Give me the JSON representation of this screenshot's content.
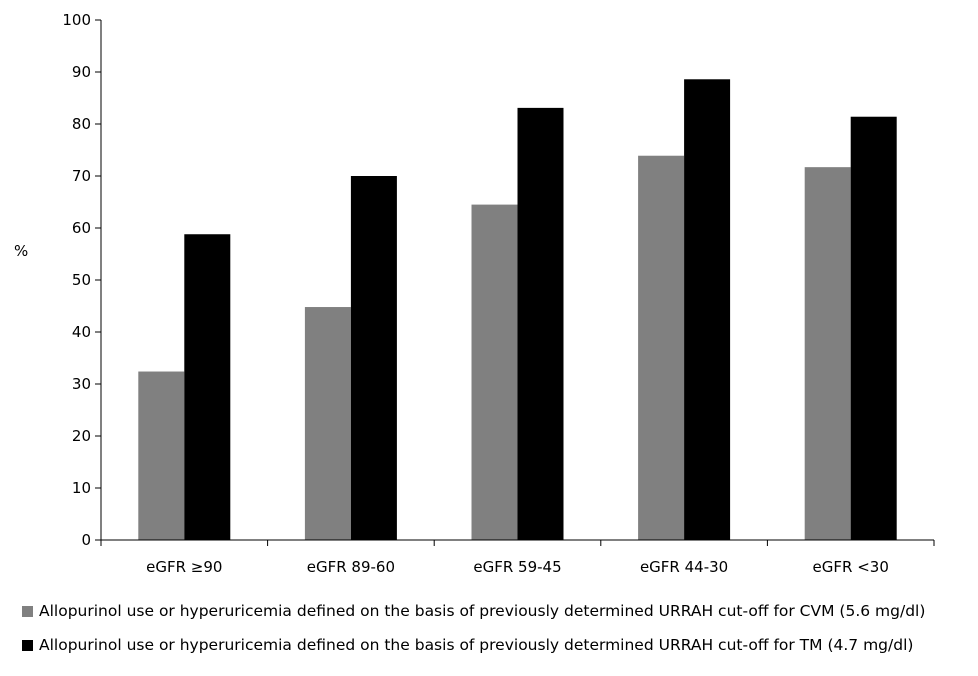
{
  "chart_data": {
    "type": "bar",
    "title": "",
    "xlabel": "",
    "ylabel": "%",
    "ylim": [
      0,
      100
    ],
    "yticks": [
      0,
      10,
      20,
      30,
      40,
      50,
      60,
      70,
      80,
      90,
      100
    ],
    "categories": [
      "eGFR ≥90",
      "eGFR 89-60",
      "eGFR 59-45",
      "eGFR 44-30",
      "eGFR <30"
    ],
    "series": [
      {
        "name": "Allopurinol use or hyperuricemia defined on the basis of previously determined URRAH cut-off for CVM (5.6 mg/dl)",
        "color": "#808080",
        "values": [
          32.4,
          44.8,
          64.5,
          73.9,
          71.7
        ]
      },
      {
        "name": "Allopurinol use or hyperuricemia defined on the basis of previously determined URRAH cut-off for TM (4.7 mg/dl)",
        "color": "#000000",
        "values": [
          58.8,
          70.0,
          83.1,
          88.6,
          81.4
        ]
      }
    ],
    "grid": false,
    "legend_position": "bottom"
  }
}
